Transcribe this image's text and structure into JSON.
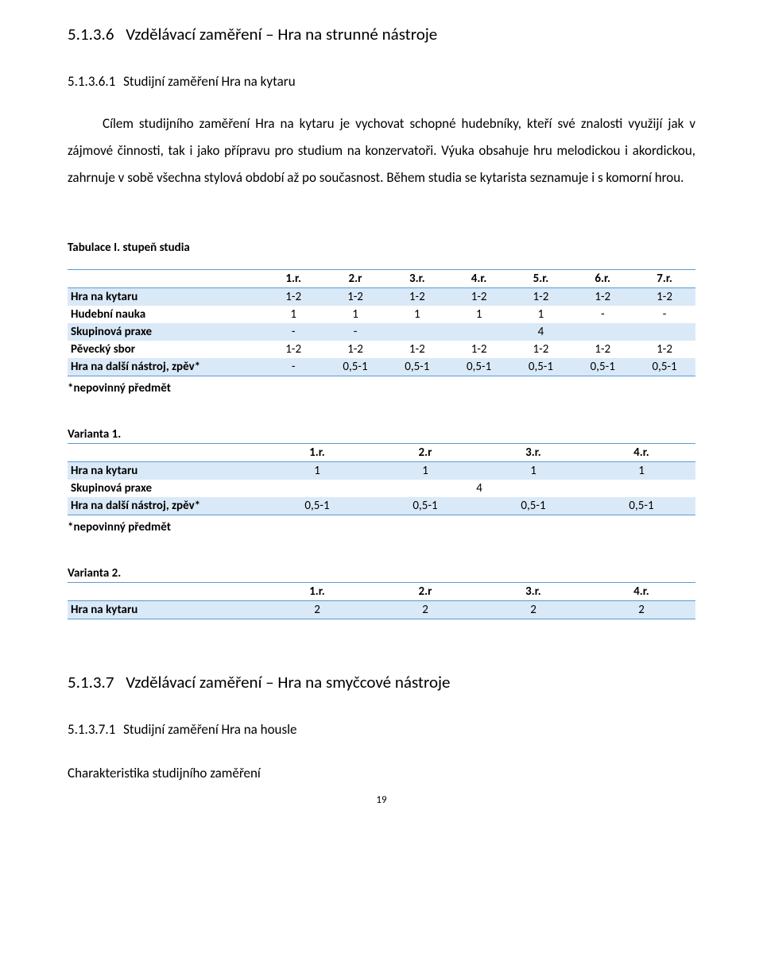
{
  "headings": {
    "h3a_num": "5.1.3.6",
    "h3a_text": "Vzdělávací zaměření – Hra na strunné nástroje",
    "h4a_num": "5.1.3.6.1",
    "h4a_text": "Studijní zaměření Hra na kytaru",
    "h3b_num": "5.1.3.7",
    "h3b_text": "Vzdělávací zaměření – Hra na smyčcové nástroje",
    "h4b_num": "5.1.3.7.1",
    "h4b_text": "Studijní zaměření Hra na housle",
    "charakteristika": "Charakteristika studijního zaměření"
  },
  "paragraph": "Cílem studijního zaměření Hra na kytaru je vychovat schopné hudebníky, kteří své znalosti využijí jak v zájmové činnosti, tak i jako přípravu pro studium na konzervatoři. Výuka obsahuje hru melodickou i akordickou, zahrnuje v sobě všechna stylová období až po současnost. Během studia se kytarista seznamuje i s komorní hrou.",
  "table1": {
    "title": "Tabulace I. stupeň studia",
    "headers": [
      "1.r.",
      "2.r",
      "3.r.",
      "4.r.",
      "5.r.",
      "6.r.",
      "7.r."
    ],
    "rows": [
      {
        "label": "Hra na kytaru",
        "cells": [
          "1-2",
          "1-2",
          "1-2",
          "1-2",
          "1-2",
          "1-2",
          "1-2"
        ],
        "band": true
      },
      {
        "label": "Hudební nauka",
        "cells": [
          "1",
          "1",
          "1",
          "1",
          "1",
          "-",
          "-"
        ],
        "band": false
      },
      {
        "label": "Skupinová praxe",
        "cells": [
          "-",
          "-",
          "",
          "",
          "4",
          "",
          ""
        ],
        "band": true,
        "merge": true
      },
      {
        "label": "Pěvecký sbor",
        "cells": [
          "1-2",
          "1-2",
          "1-2",
          "1-2",
          "1-2",
          "1-2",
          "1-2"
        ],
        "band": false
      },
      {
        "label": "Hra na další nástroj, zpěv*",
        "cells": [
          "-",
          "0,5-1",
          "0,5-1",
          "0,5-1",
          "0,5-1",
          "0,5-1",
          "0,5-1"
        ],
        "band": true
      }
    ],
    "note": "*nepovinný předmět"
  },
  "variant1": {
    "title": "Varianta 1.",
    "headers": [
      "1.r.",
      "2.r",
      "3.r.",
      "4.r."
    ],
    "rows": [
      {
        "label": "Hra na kytaru",
        "cells": [
          "1",
          "1",
          "1",
          "1"
        ],
        "band": true
      },
      {
        "label": "Skupinová praxe",
        "cells": [
          "",
          "",
          "4",
          ""
        ],
        "band": false,
        "merge4": true
      },
      {
        "label": "Hra na další nástroj, zpěv*",
        "cells": [
          "0,5-1",
          "0,5-1",
          "0,5-1",
          "0,5-1"
        ],
        "band": true
      }
    ],
    "note": "*nepovinný předmět"
  },
  "variant2": {
    "title": "Varianta 2.",
    "headers": [
      "1.r.",
      "2.r",
      "3.r.",
      "4.r."
    ],
    "rows": [
      {
        "label": "Hra na kytaru",
        "cells": [
          "2",
          "2",
          "2",
          "2"
        ],
        "band": true
      }
    ]
  },
  "pageNumber": "19",
  "colors": {
    "band": "#dae9f7",
    "border": "#5b9bd5",
    "text": "#000000",
    "bg": "#ffffff"
  }
}
